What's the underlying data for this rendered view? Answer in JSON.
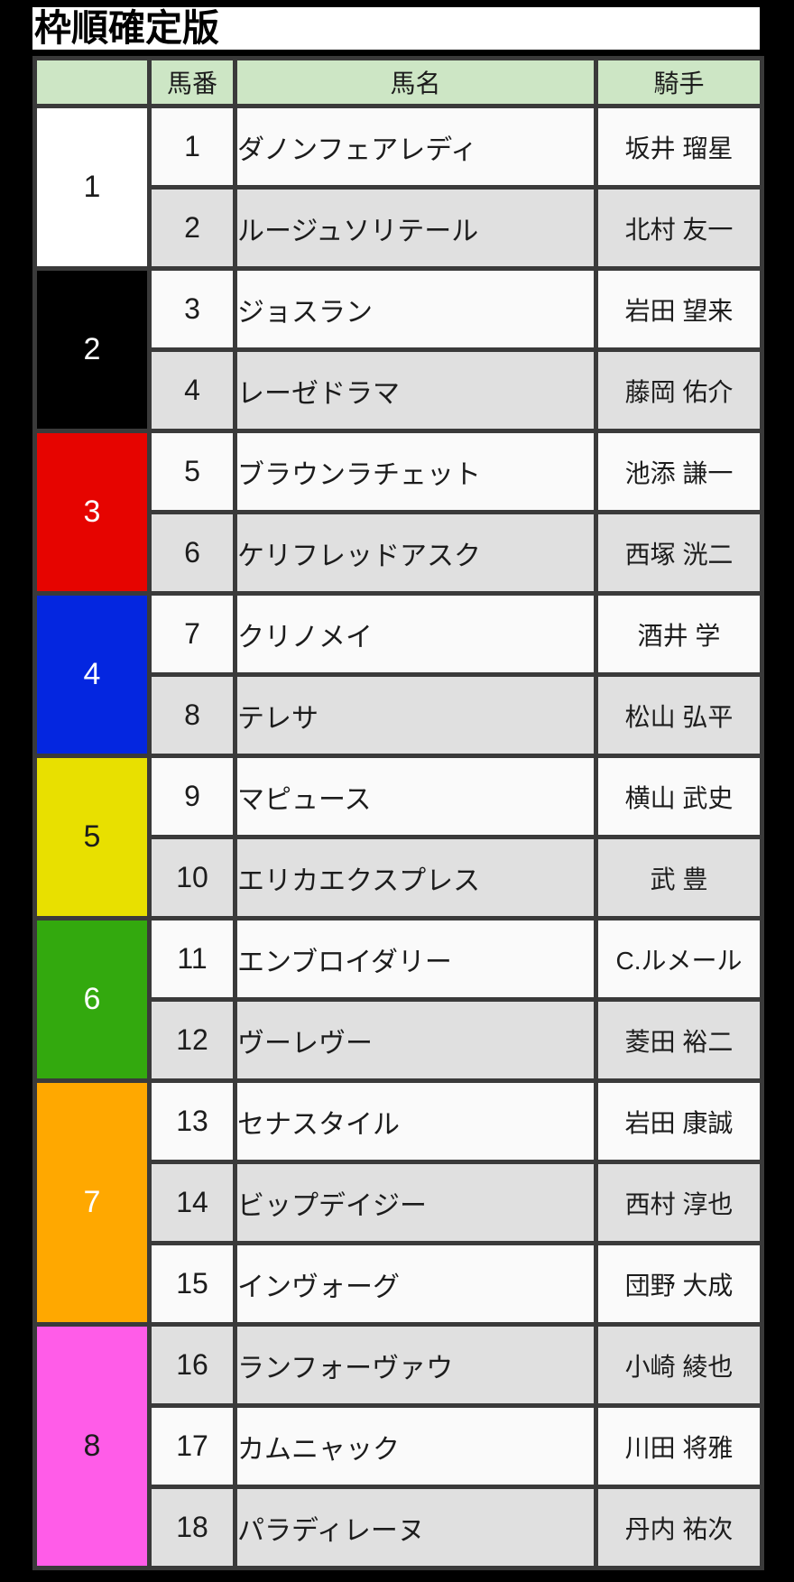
{
  "title": "枠順確定版",
  "table": {
    "headers": {
      "frame": "",
      "number": "馬番",
      "name": "馬名",
      "jockey": "騎手"
    },
    "frames": [
      {
        "label": "1",
        "color": "#ffffff",
        "text_color": "#1c1c1c"
      },
      {
        "label": "2",
        "color": "#000000",
        "text_color": "#ffffff"
      },
      {
        "label": "3",
        "color": "#e60400",
        "text_color": "#ffffff"
      },
      {
        "label": "4",
        "color": "#0426e0",
        "text_color": "#ffffff"
      },
      {
        "label": "5",
        "color": "#e8e000",
        "text_color": "#1c1c1c"
      },
      {
        "label": "6",
        "color": "#33a90e",
        "text_color": "#ffffff"
      },
      {
        "label": "7",
        "color": "#ffa800",
        "text_color": "#ffffff"
      },
      {
        "label": "8",
        "color": "#ff5ce8",
        "text_color": "#1c1c1c"
      }
    ],
    "rows": [
      {
        "number": "1",
        "name": "ダノンフェアレディ",
        "jockey": "坂井 瑠星"
      },
      {
        "number": "2",
        "name": "ルージュソリテール",
        "jockey": "北村 友一"
      },
      {
        "number": "3",
        "name": "ジョスラン",
        "jockey": "岩田 望来"
      },
      {
        "number": "4",
        "name": "レーゼドラマ",
        "jockey": "藤岡 佑介"
      },
      {
        "number": "5",
        "name": "ブラウンラチェット",
        "jockey": "池添 謙一"
      },
      {
        "number": "6",
        "name": "ケリフレッドアスク",
        "jockey": "西塚 洸二"
      },
      {
        "number": "7",
        "name": "クリノメイ",
        "jockey": "酒井 学"
      },
      {
        "number": "8",
        "name": "テレサ",
        "jockey": "松山 弘平"
      },
      {
        "number": "9",
        "name": "マピュース",
        "jockey": "横山 武史"
      },
      {
        "number": "10",
        "name": "エリカエクスプレス",
        "jockey": "武 豊"
      },
      {
        "number": "11",
        "name": "エンブロイダリー",
        "jockey": "C.ルメール"
      },
      {
        "number": "12",
        "name": "ヴーレヴー",
        "jockey": "菱田 裕二"
      },
      {
        "number": "13",
        "name": "セナスタイル",
        "jockey": "岩田 康誠"
      },
      {
        "number": "14",
        "name": "ビップデイジー",
        "jockey": "西村 淳也"
      },
      {
        "number": "15",
        "name": "インヴォーグ",
        "jockey": "団野 大成"
      },
      {
        "number": "16",
        "name": "ランフォーヴァウ",
        "jockey": "小崎 綾也"
      },
      {
        "number": "17",
        "name": "カムニャック",
        "jockey": "川田 将雅"
      },
      {
        "number": "18",
        "name": "パラディレーヌ",
        "jockey": "丹内 祐次"
      }
    ],
    "colors": {
      "header_bg": "#cde6c5",
      "row_light": "#fafafa",
      "row_dark": "#e0e0e0",
      "border": "#3a3a3a",
      "page_bg": "#000000"
    }
  }
}
